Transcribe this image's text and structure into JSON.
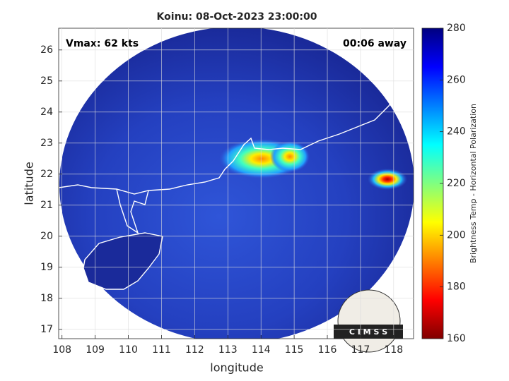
{
  "chart_data": {
    "type": "image",
    "title": "Koinu: 08-Oct-2023 23:00:00",
    "xlabel": "longitude",
    "ylabel": "latitude",
    "xlim": [
      107.9,
      118.6
    ],
    "ylim": [
      16.7,
      26.7
    ],
    "xticks": [
      108,
      109,
      110,
      111,
      112,
      113,
      114,
      115,
      116,
      117,
      118
    ],
    "yticks": [
      17,
      18,
      19,
      20,
      21,
      22,
      23,
      24,
      25,
      26
    ],
    "grid": true,
    "annotations": [
      "Vmax: 62 kts",
      "00:06 away"
    ],
    "logo": "C I M S S",
    "colorbar": {
      "label": "Brightness Temp - Horizontal Polarization",
      "clim": [
        160,
        280
      ],
      "ticks": [
        160,
        180,
        200,
        220,
        240,
        260,
        280
      ],
      "colormap": "jet"
    }
  }
}
